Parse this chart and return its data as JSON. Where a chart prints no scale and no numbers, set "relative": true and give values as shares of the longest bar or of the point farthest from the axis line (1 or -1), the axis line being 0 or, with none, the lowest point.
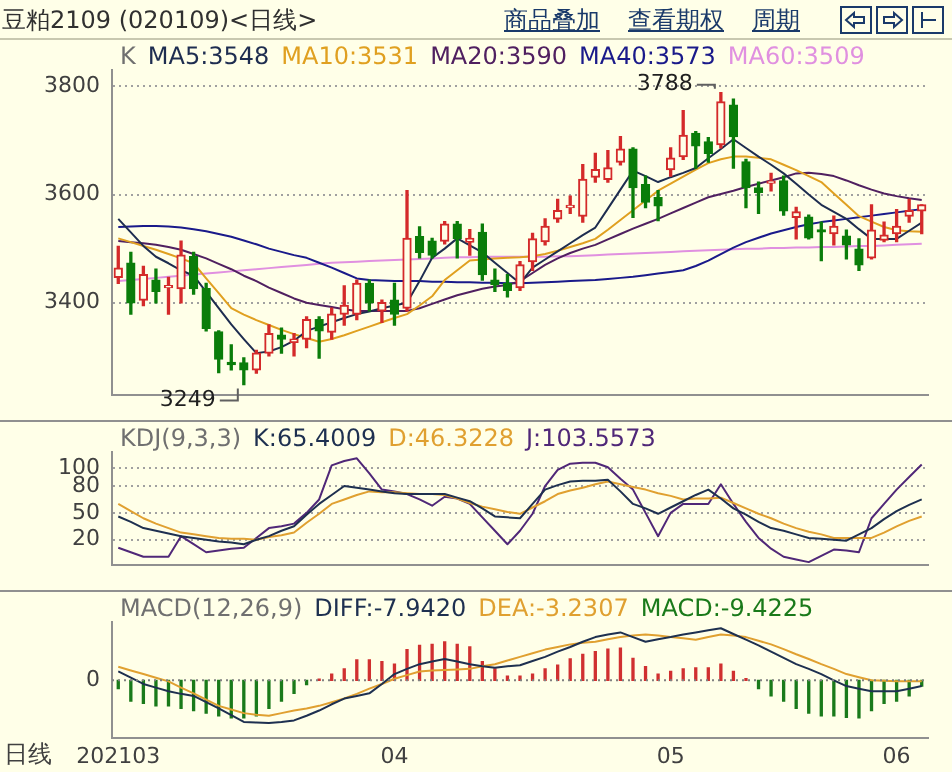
{
  "chart_data": [
    {
      "type": "candlestick",
      "title": "K",
      "legend": "top left",
      "grid": "y",
      "tick_labels": "y",
      "ylim": [
        3230,
        3830
      ],
      "yticks": [
        3400,
        3600,
        3800
      ],
      "annotations": [
        "豆粕2109 (020109)<日线>",
        "商品叠加",
        "查看期权",
        "周期",
        "3249",
        "3788"
      ],
      "categories": [
        "202103",
        null,
        null,
        null,
        null,
        null,
        null,
        null,
        null,
        null,
        null,
        null,
        null,
        null,
        null,
        null,
        null,
        null,
        null,
        null,
        null,
        null,
        "04",
        null,
        null,
        null,
        null,
        null,
        null,
        null,
        null,
        null,
        null,
        null,
        null,
        null,
        null,
        null,
        null,
        null,
        null,
        null,
        null,
        null,
        "05",
        null,
        null,
        null,
        null,
        null,
        null,
        null,
        null,
        null,
        null,
        null,
        null,
        null,
        null,
        null,
        null,
        null,
        "06",
        null,
        null
      ],
      "ohlc": [
        [
          3447,
          3504,
          3436,
          3464
        ],
        [
          3473,
          3493,
          3379,
          3400
        ],
        [
          3405,
          3467,
          3395,
          3452
        ],
        [
          3442,
          3462,
          3400,
          3421
        ],
        [
          3428,
          3447,
          3379,
          3431
        ],
        [
          3426,
          3514,
          3400,
          3488
        ],
        [
          3485,
          3493,
          3416,
          3426
        ],
        [
          3426,
          3436,
          3348,
          3353
        ],
        [
          3346,
          3348,
          3271,
          3296
        ],
        [
          3290,
          3322,
          3276,
          3286
        ],
        [
          3289,
          3298,
          3249,
          3276
        ],
        [
          3276,
          3312,
          3270,
          3307
        ],
        [
          3307,
          3359,
          3302,
          3343
        ],
        [
          3340,
          3353,
          3307,
          3333
        ],
        [
          3327,
          3343,
          3302,
          3333
        ],
        [
          3333,
          3374,
          3317,
          3369
        ],
        [
          3369,
          3374,
          3298,
          3348
        ],
        [
          3346,
          3390,
          3333,
          3379
        ],
        [
          3379,
          3431,
          3359,
          3395
        ],
        [
          3379,
          3442,
          3369,
          3436
        ],
        [
          3436,
          3442,
          3385,
          3400
        ],
        [
          3385,
          3405,
          3364,
          3400
        ],
        [
          3405,
          3436,
          3359,
          3379
        ],
        [
          3390,
          3607,
          3385,
          3519
        ],
        [
          3522,
          3540,
          3483,
          3493
        ],
        [
          3514,
          3519,
          3483,
          3488
        ],
        [
          3514,
          3550,
          3509,
          3545
        ],
        [
          3545,
          3550,
          3483,
          3519
        ],
        [
          3512,
          3535,
          3488,
          3519
        ],
        [
          3530,
          3545,
          3442,
          3452
        ],
        [
          3442,
          3462,
          3421,
          3434
        ],
        [
          3436,
          3452,
          3411,
          3423
        ],
        [
          3428,
          3476,
          3423,
          3470
        ],
        [
          3476,
          3528,
          3460,
          3518
        ],
        [
          3513,
          3555,
          3507,
          3541
        ],
        [
          3555,
          3591,
          3549,
          3570
        ],
        [
          3576,
          3597,
          3565,
          3579
        ],
        [
          3560,
          3655,
          3549,
          3628
        ],
        [
          3632,
          3676,
          3623,
          3646
        ],
        [
          3628,
          3681,
          3623,
          3649
        ],
        [
          3660,
          3707,
          3655,
          3684
        ],
        [
          3684,
          3686,
          3558,
          3613
        ],
        [
          3618,
          3634,
          3576,
          3586
        ],
        [
          3594,
          3607,
          3552,
          3579
        ],
        [
          3646,
          3686,
          3634,
          3667
        ],
        [
          3670,
          3755,
          3665,
          3709
        ],
        [
          3713,
          3716,
          3649,
          3690
        ],
        [
          3697,
          3705,
          3660,
          3676
        ],
        [
          3692,
          3788,
          3686,
          3771
        ],
        [
          3765,
          3776,
          3649,
          3707
        ],
        [
          3660,
          3665,
          3576,
          3613
        ],
        [
          3612,
          3623,
          3565,
          3604
        ],
        [
          3621,
          3639,
          3607,
          3623
        ],
        [
          3625,
          3634,
          3562,
          3570
        ],
        [
          3558,
          3576,
          3518,
          3568
        ],
        [
          3558,
          3562,
          3518,
          3520
        ],
        [
          3532,
          3549,
          3478,
          3531
        ],
        [
          3528,
          3560,
          3507,
          3541
        ],
        [
          3523,
          3534,
          3481,
          3507
        ],
        [
          3499,
          3518,
          3460,
          3470
        ],
        [
          3483,
          3581,
          3481,
          3534
        ],
        [
          3516,
          3549,
          3513,
          3525
        ],
        [
          3528,
          3572,
          3513,
          3541
        ],
        [
          3560,
          3591,
          3549,
          3570
        ],
        [
          3570,
          3581,
          3528,
          3581
        ]
      ],
      "series": [
        {
          "type": "line",
          "name": "MA5:3548",
          "color": "#1e2d50",
          "values": [
            3555,
            3530,
            3505,
            3485,
            3473,
            3460,
            3450,
            3420,
            3390,
            3360,
            3333,
            3307,
            3310,
            3318,
            3330,
            3348,
            3356,
            3364,
            3372,
            3379,
            3384,
            3390,
            3395,
            3400,
            3440,
            3483,
            3500,
            3519,
            3506,
            3493,
            3474,
            3455,
            3436,
            3465,
            3480,
            3495,
            3510,
            3525,
            3539,
            3574,
            3609,
            3644,
            3634,
            3623,
            3632,
            3640,
            3649,
            3667,
            3684,
            3702,
            3686,
            3670,
            3655,
            3639,
            3620,
            3600,
            3581,
            3568,
            3555,
            3536,
            3518,
            3518,
            3518,
            3533,
            3548
          ]
        },
        {
          "type": "line",
          "name": "MA10:3531",
          "color": "#e0a020",
          "values": [
            3519,
            3512,
            3505,
            3498,
            3490,
            3482,
            3473,
            3445,
            3418,
            3390,
            3378,
            3368,
            3359,
            3350,
            3342,
            3335,
            3328,
            3333,
            3340,
            3348,
            3356,
            3364,
            3372,
            3379,
            3395,
            3412,
            3442,
            3460,
            3478,
            3480,
            3482,
            3483,
            3484,
            3486,
            3490,
            3496,
            3503,
            3510,
            3518,
            3535,
            3553,
            3571,
            3589,
            3607,
            3620,
            3633,
            3646,
            3658,
            3665,
            3670,
            3670,
            3668,
            3665,
            3655,
            3645,
            3634,
            3623,
            3602,
            3581,
            3560,
            3550,
            3540,
            3534,
            3532,
            3531
          ]
        },
        {
          "type": "line",
          "name": "MA20:3590",
          "color": "#502060",
          "values": [
            3514,
            3512,
            3510,
            3507,
            3503,
            3498,
            3490,
            3482,
            3472,
            3462,
            3450,
            3440,
            3428,
            3418,
            3408,
            3400,
            3396,
            3392,
            3388,
            3385,
            3385,
            3385,
            3385,
            3385,
            3390,
            3398,
            3406,
            3414,
            3420,
            3426,
            3430,
            3433,
            3440,
            3455,
            3470,
            3482,
            3492,
            3500,
            3507,
            3517,
            3527,
            3537,
            3546,
            3555,
            3565,
            3575,
            3585,
            3595,
            3601,
            3607,
            3614,
            3620,
            3626,
            3632,
            3639,
            3640,
            3638,
            3634,
            3626,
            3617,
            3609,
            3602,
            3597,
            3593,
            3590
          ]
        },
        {
          "type": "line",
          "name": "MA40:3573",
          "color": "#1a1a8a",
          "values": [
            3540,
            3541,
            3542,
            3542,
            3541,
            3539,
            3536,
            3532,
            3527,
            3522,
            3515,
            3508,
            3500,
            3494,
            3488,
            3483,
            3474,
            3465,
            3455,
            3445,
            3442,
            3441,
            3440,
            3440,
            3440,
            3439,
            3439,
            3438,
            3438,
            3437,
            3437,
            3436,
            3436,
            3437,
            3438,
            3439,
            3440,
            3441,
            3442,
            3444,
            3446,
            3448,
            3451,
            3454,
            3457,
            3460,
            3468,
            3478,
            3490,
            3502,
            3512,
            3520,
            3528,
            3534,
            3540,
            3545,
            3549,
            3552,
            3555,
            3558,
            3561,
            3564,
            3567,
            3570,
            3573
          ]
        },
        {
          "type": "line",
          "name": "MA60:3509",
          "color": "#e090e0",
          "values": [
            3440,
            3442,
            3444,
            3446,
            3448,
            3450,
            3452,
            3454,
            3456,
            3458,
            3460,
            3462,
            3464,
            3466,
            3468,
            3470,
            3472,
            3474,
            3475,
            3476,
            3477,
            3478,
            3479,
            3480,
            3481,
            3482,
            3483,
            3484,
            3484,
            3485,
            3485,
            3485,
            3485,
            3485,
            3485,
            3486,
            3486,
            3487,
            3488,
            3489,
            3490,
            3491,
            3492,
            3493,
            3494,
            3495,
            3496,
            3497,
            3498,
            3499,
            3500,
            3500,
            3501,
            3501,
            3502,
            3502,
            3503,
            3503,
            3504,
            3505,
            3505,
            3506,
            3507,
            3508,
            3509
          ]
        }
      ]
    },
    {
      "type": "line",
      "title": "KDJ(9,3,3)",
      "legend": "top left",
      "grid": "y",
      "tick_labels": "y",
      "ylim": [
        -8,
        118
      ],
      "yticks": [
        20,
        50,
        80,
        100
      ],
      "categories": [
        "202103",
        null,
        null,
        null,
        null,
        null,
        null,
        null,
        null,
        null,
        null,
        null,
        null,
        null,
        null,
        null,
        null,
        null,
        null,
        null,
        null,
        null,
        "04",
        null,
        null,
        null,
        null,
        null,
        null,
        null,
        null,
        null,
        null,
        null,
        null,
        null,
        null,
        null,
        null,
        null,
        null,
        null,
        null,
        null,
        "05",
        null,
        null,
        null,
        null,
        null,
        null,
        null,
        null,
        null,
        null,
        null,
        null,
        null,
        null,
        null,
        null,
        null,
        "06",
        null,
        null
      ],
      "series": [
        {
          "name": "K:65.4009",
          "color": "#1e3050",
          "values": [
            46,
            40,
            33,
            30,
            27,
            24,
            22,
            20,
            18,
            17,
            15,
            20,
            24,
            30,
            35,
            48,
            60,
            70,
            80,
            78,
            76,
            74,
            72,
            71,
            71,
            71,
            71,
            67,
            63,
            55,
            46,
            45,
            44,
            60,
            76,
            81,
            85,
            86,
            86,
            87,
            74,
            60,
            55,
            49,
            56,
            63,
            70,
            76,
            66,
            55,
            48,
            40,
            33,
            30,
            26,
            22,
            21,
            20,
            19,
            26,
            33,
            43,
            52,
            59,
            65
          ]
        },
        {
          "name": "D:46.3228",
          "color": "#e0a030",
          "values": [
            60,
            52,
            44,
            38,
            33,
            28,
            26,
            24,
            22,
            21,
            21,
            20,
            23,
            25,
            28,
            39,
            49,
            60,
            65,
            70,
            74,
            73,
            73,
            72,
            71,
            71,
            70,
            66,
            61,
            57,
            54,
            51,
            49,
            56,
            63,
            71,
            75,
            78,
            82,
            85,
            82,
            79,
            76,
            72,
            69,
            65,
            66,
            66,
            67,
            61,
            55,
            49,
            44,
            38,
            33,
            29,
            26,
            22,
            22,
            22,
            22,
            28,
            35,
            41,
            46
          ]
        },
        {
          "name": "J:103.5573",
          "color": "#502878",
          "values": [
            11,
            6,
            1,
            1,
            1,
            24,
            15,
            6,
            8,
            10,
            11,
            22,
            33,
            35,
            38,
            50,
            65,
            103,
            108,
            111,
            94,
            76,
            74,
            71,
            65,
            58,
            68,
            66,
            60,
            45,
            30,
            15,
            30,
            49,
            80,
            98,
            105,
            106,
            106,
            101,
            88,
            76,
            50,
            24,
            50,
            60,
            60,
            60,
            82,
            60,
            40,
            22,
            10,
            1,
            -2,
            -5,
            2,
            9,
            8,
            6,
            44,
            60,
            76,
            90,
            104
          ]
        }
      ]
    },
    {
      "type": "bar",
      "title": "MACD(12,26,9)",
      "legend": "top left",
      "relative": true,
      "tick_labels": "x",
      "annotations": [
        "日线"
      ],
      "ref_lines": [
        {
          "axis": "y",
          "value": 0,
          "label": "0"
        }
      ],
      "categories": [
        "202103",
        null,
        null,
        null,
        null,
        null,
        null,
        null,
        null,
        null,
        null,
        null,
        null,
        null,
        null,
        null,
        null,
        null,
        null,
        null,
        null,
        null,
        "04",
        null,
        null,
        null,
        null,
        null,
        null,
        null,
        null,
        null,
        null,
        null,
        null,
        null,
        null,
        null,
        null,
        null,
        null,
        null,
        null,
        null,
        "05",
        null,
        null,
        null,
        null,
        null,
        null,
        null,
        null,
        null,
        null,
        null,
        null,
        null,
        null,
        null,
        null,
        null,
        "06",
        null,
        null
      ],
      "series": [
        {
          "type": "line",
          "name": "DIFF:-7.9420",
          "color": "#1e3050",
          "values": [
            0.17,
            0.05,
            -0.07,
            -0.14,
            -0.21,
            -0.26,
            -0.3,
            -0.42,
            -0.54,
            -0.67,
            -0.8,
            -0.81,
            -0.82,
            -0.8,
            -0.77,
            -0.68,
            -0.58,
            -0.46,
            -0.35,
            -0.3,
            -0.25,
            -0.07,
            0.12,
            0.22,
            0.31,
            0.36,
            0.41,
            0.36,
            0.31,
            0.27,
            0.24,
            0.27,
            0.29,
            0.37,
            0.45,
            0.55,
            0.64,
            0.74,
            0.83,
            0.88,
            0.92,
            0.83,
            0.74,
            0.79,
            0.83,
            0.88,
            0.92,
            0.96,
            1,
            0.89,
            0.78,
            0.67,
            0.55,
            0.43,
            0.31,
            0.22,
            0.12,
            0,
            -0.11,
            -0.16,
            -0.21,
            -0.21,
            -0.21,
            -0.16,
            -0.11
          ]
        },
        {
          "type": "line",
          "name": "DEA:-3.2307",
          "color": "#e0a030",
          "values": [
            0.26,
            0.19,
            0.12,
            0.05,
            -0.02,
            -0.14,
            -0.25,
            -0.37,
            -0.49,
            -0.56,
            -0.63,
            -0.66,
            -0.68,
            -0.63,
            -0.58,
            -0.54,
            -0.49,
            -0.42,
            -0.35,
            -0.26,
            -0.16,
            -0.07,
            0.03,
            0.1,
            0.17,
            0.19,
            0.2,
            0.21,
            0.22,
            0.27,
            0.31,
            0.38,
            0.45,
            0.52,
            0.59,
            0.64,
            0.69,
            0.72,
            0.74,
            0.79,
            0.83,
            0.86,
            0.88,
            0.86,
            0.83,
            0.81,
            0.78,
            0.83,
            0.88,
            0.86,
            0.83,
            0.76,
            0.69,
            0.6,
            0.5,
            0.41,
            0.31,
            0.22,
            0.12,
            0.06,
            0,
            -0.01,
            -0.02,
            -0.02,
            -0.02
          ]
        },
        {
          "name": "MACD:-9.4225",
          "values": [
            -0.16,
            -0.4,
            -0.44,
            -0.49,
            -0.49,
            -0.54,
            -0.58,
            -0.63,
            -0.68,
            -0.72,
            -0.72,
            -0.68,
            -0.54,
            -0.4,
            -0.25,
            -0.08,
            0.02,
            0.12,
            0.22,
            0.39,
            0.39,
            0.36,
            0.31,
            0.59,
            0.67,
            0.69,
            0.74,
            0.69,
            0.64,
            0.36,
            0.22,
            0.08,
            0.08,
            0.12,
            0.22,
            0.29,
            0.41,
            0.5,
            0.55,
            0.6,
            0.62,
            0.42,
            0.26,
            0.12,
            0.17,
            0.22,
            0.24,
            0.24,
            0.31,
            0.17,
            0.03,
            -0.16,
            -0.3,
            -0.4,
            -0.54,
            -0.63,
            -0.68,
            -0.68,
            -0.71,
            -0.72,
            -0.58,
            -0.44,
            -0.4,
            -0.3,
            -0.11
          ],
          "colors": [
            "#1a7a1a",
            "#1a7a1a",
            "#1a7a1a",
            "#1a7a1a",
            "#1a7a1a",
            "#1a7a1a",
            "#1a7a1a",
            "#1a7a1a",
            "#1a7a1a",
            "#1a7a1a",
            "#1a7a1a",
            "#1a7a1a",
            "#1a7a1a",
            "#1a7a1a",
            "#1a7a1a",
            "#1a7a1a",
            "#d03030",
            "#d03030",
            "#d03030",
            "#d03030",
            "#d03030",
            "#d03030",
            "#d03030",
            "#d03030",
            "#d03030",
            "#d03030",
            "#d03030",
            "#d03030",
            "#d03030",
            "#d03030",
            "#d03030",
            "#d03030",
            "#d03030",
            "#d03030",
            "#d03030",
            "#d03030",
            "#d03030",
            "#d03030",
            "#d03030",
            "#d03030",
            "#d03030",
            "#d03030",
            "#d03030",
            "#d03030",
            "#d03030",
            "#d03030",
            "#d03030",
            "#d03030",
            "#d03030",
            "#d03030",
            "#d03030",
            "#1a7a1a",
            "#1a7a1a",
            "#1a7a1a",
            "#1a7a1a",
            "#1a7a1a",
            "#1a7a1a",
            "#1a7a1a",
            "#1a7a1a",
            "#1a7a1a",
            "#1a7a1a",
            "#1a7a1a",
            "#1a7a1a",
            "#1a7a1a",
            "#1a7a1a"
          ]
        }
      ]
    }
  ]
}
